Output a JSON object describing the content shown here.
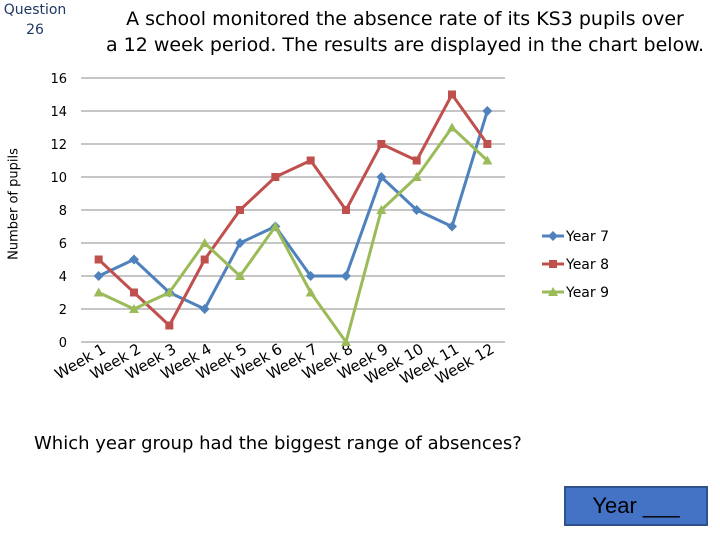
{
  "question_label": {
    "line1": "Question",
    "line2": "26"
  },
  "title": {
    "line1": "A school monitored the absence rate of its KS3 pupils over",
    "line2": "a 12 week period. The results are displayed in the chart below."
  },
  "question_text": "Which year group had the biggest range of absences?",
  "answer_prompt": "Year ___",
  "chart_data": {
    "type": "line",
    "ylabel": "Number of pupils",
    "xlabel": "",
    "ylim": [
      0,
      16
    ],
    "yticks": [
      0,
      2,
      4,
      6,
      8,
      10,
      12,
      14,
      16
    ],
    "grid": "horizontal",
    "legend": "right",
    "categories": [
      "Week 1",
      "Week 2",
      "Week 3",
      "Week 4",
      "Week 5",
      "Week 6",
      "Week 7",
      "Week 8",
      "Week 9",
      "Week 10",
      "Week 11",
      "Week 12"
    ],
    "series": [
      {
        "name": "Year 7",
        "color": "#4f81bd",
        "marker": "diamond",
        "values": [
          4,
          5,
          3,
          2,
          6,
          7,
          4,
          4,
          10,
          8,
          7,
          14
        ]
      },
      {
        "name": "Year 8",
        "color": "#c0504d",
        "marker": "square",
        "values": [
          5,
          3,
          1,
          5,
          8,
          10,
          11,
          8,
          12,
          11,
          15,
          12
        ]
      },
      {
        "name": "Year 9",
        "color": "#9bbb59",
        "marker": "triangle",
        "values": [
          3,
          2,
          3,
          6,
          4,
          7,
          3,
          0,
          8,
          10,
          13,
          11
        ]
      }
    ]
  }
}
